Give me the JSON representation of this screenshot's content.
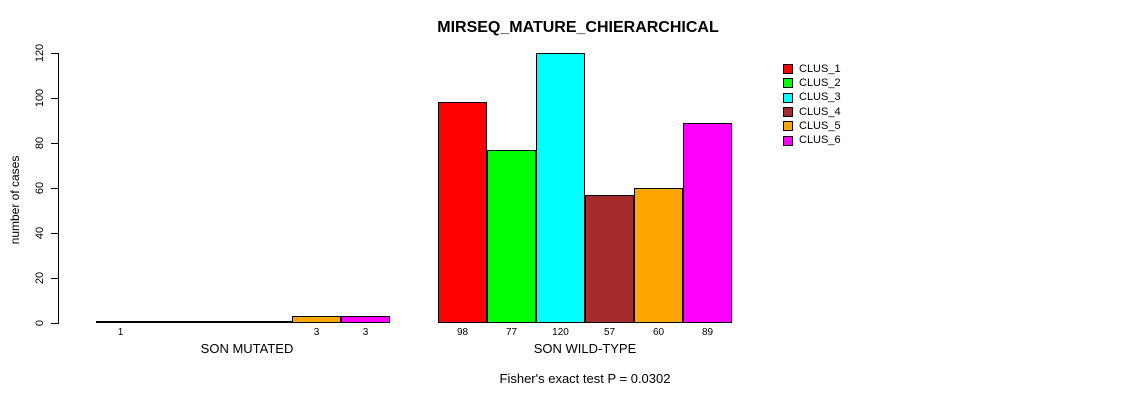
{
  "chart_data": {
    "type": "bar",
    "title": "MIRSEQ_MATURE_CHIERARCHICAL",
    "ylabel": "number of cases",
    "subtitle": "Fisher's exact test P = 0.0302",
    "ylim": [
      0,
      120
    ],
    "yticks": [
      0,
      20,
      40,
      60,
      80,
      100,
      120
    ],
    "grid": false,
    "legend_position": "top-right",
    "categories": [
      "SON MUTATED",
      "SON WILD-TYPE"
    ],
    "series": [
      {
        "name": "CLUS_1",
        "color": "#FF0000",
        "values": [
          1,
          98
        ]
      },
      {
        "name": "CLUS_2",
        "color": "#00FF00",
        "values": [
          0,
          77
        ]
      },
      {
        "name": "CLUS_3",
        "color": "#00FFFF",
        "values": [
          0,
          120
        ]
      },
      {
        "name": "CLUS_4",
        "color": "#A52A2A",
        "values": [
          0,
          57
        ]
      },
      {
        "name": "CLUS_5",
        "color": "#FFA500",
        "values": [
          3,
          60
        ]
      },
      {
        "name": "CLUS_6",
        "color": "#FF00FF",
        "values": [
          3,
          89
        ]
      }
    ],
    "bar_value_labels": [
      [
        "1",
        "",
        "",
        "",
        "3",
        "3"
      ],
      [
        "98",
        "77",
        "120",
        "57",
        "60",
        "89"
      ]
    ]
  }
}
